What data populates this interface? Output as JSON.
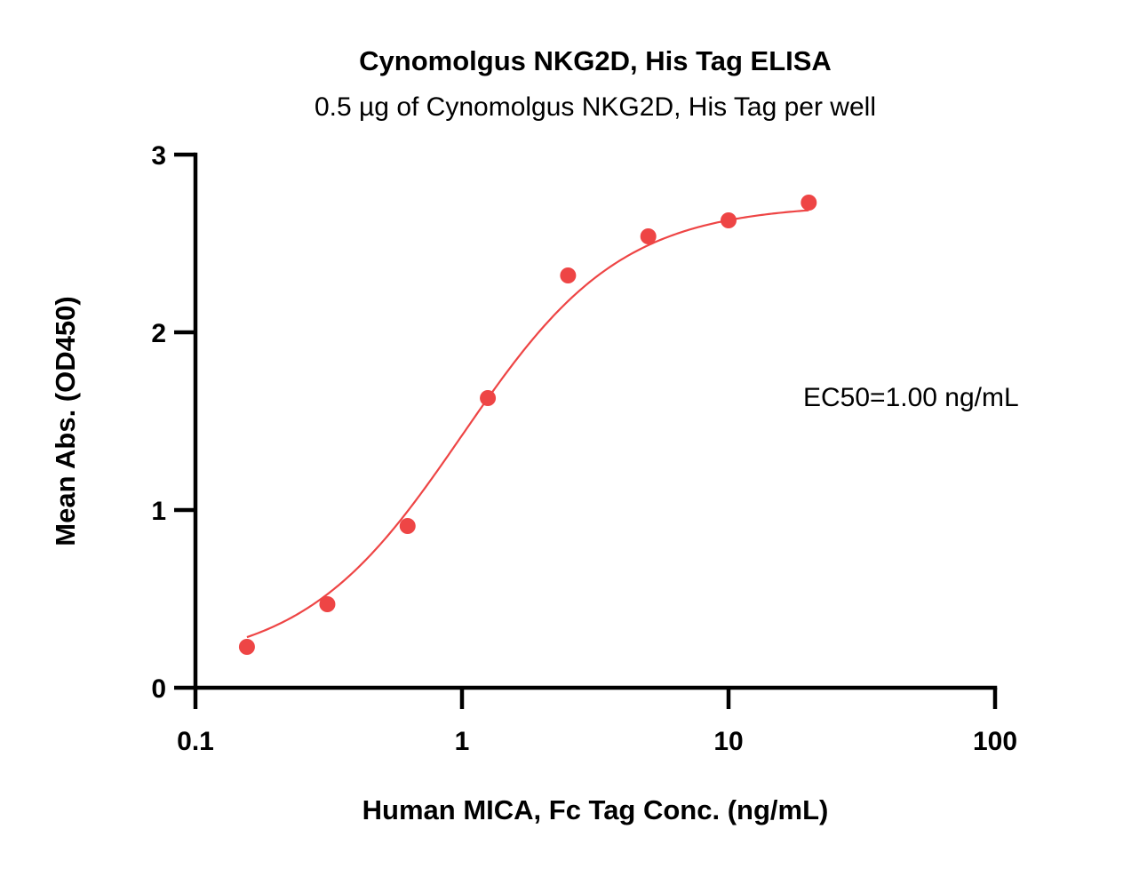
{
  "chart_data": {
    "type": "scatter",
    "title": "Cynomolgus NKG2D, His Tag ELISA",
    "subtitle": "0.5 µg of Cynomolgus NKG2D, His Tag per well",
    "xlabel": "Human MICA, Fc Tag Conc. (ng/mL)",
    "ylabel": "Mean Abs. (OD450)",
    "x_scale": "log10",
    "xlim": [
      0.1,
      100
    ],
    "ylim": [
      0,
      3
    ],
    "x_ticks": [
      0.1,
      1,
      10,
      100
    ],
    "x_tick_labels": [
      "0.1",
      "1",
      "10",
      "100"
    ],
    "y_ticks": [
      0,
      1,
      2,
      3
    ],
    "y_tick_labels": [
      "0",
      "1",
      "2",
      "3"
    ],
    "grid": false,
    "color": "#ee4545",
    "series": [
      {
        "x": [
          0.156,
          0.3125,
          0.625,
          1.25,
          2.5,
          5,
          10,
          20
        ],
        "y": [
          0.23,
          0.47,
          0.91,
          1.63,
          2.32,
          2.54,
          2.63,
          2.73
        ]
      }
    ],
    "fit": {
      "model": "4PL",
      "bottom": 0.12,
      "top": 2.72,
      "ec50": 1.0,
      "hill": 1.45
    },
    "annotation": "EC50=1.00 ng/mL"
  }
}
